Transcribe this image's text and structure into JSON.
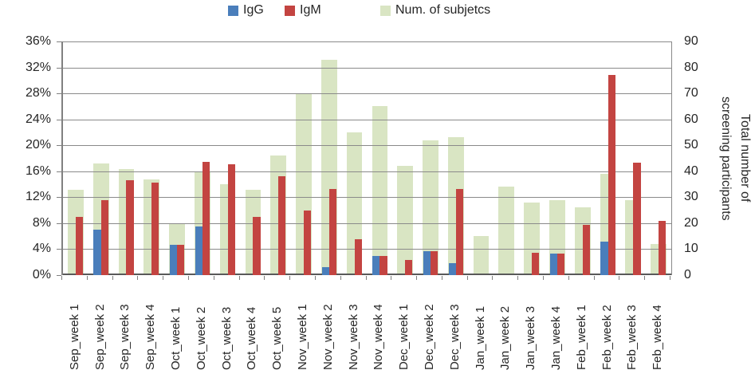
{
  "legend": {
    "items": [
      {
        "label": "IgG",
        "color": "#4A7EBB"
      },
      {
        "label": "IgM",
        "color": "#C34441"
      },
      {
        "label": "Num. of subjetcs",
        "color": "#D9E5C3"
      }
    ]
  },
  "chart_data": {
    "type": "bar",
    "title": "",
    "categories": [
      "Sep_week 1",
      "Sep_week 2",
      "Sep_week 3",
      "Sep_week 4",
      "Oct_week 1",
      "Oct_week 2",
      "Oct_week 3",
      "Oct_week 4",
      "Oct_week 5",
      "Nov_week 1",
      "Nov_week 2",
      "Nov_week 3",
      "Nov_week 4",
      "Dec_week 1",
      "Dec_week 2",
      "Dec_week 3",
      "Jan_week 1",
      "Jan_week 2",
      "Jan_week 3",
      "Jan_week 4",
      "Feb_week 1",
      "Feb_week 2",
      "Feb_week 3",
      "Feb_week 4"
    ],
    "series": [
      {
        "name": "IgG",
        "axis": "left",
        "color": "#4A7EBB",
        "values": [
          0,
          7.0,
          0,
          0,
          4.7,
          7.5,
          0,
          0,
          0,
          0,
          1.2,
          0,
          3.0,
          0,
          3.7,
          1.8,
          0,
          0,
          0,
          3.3,
          0,
          5.1,
          0,
          0
        ]
      },
      {
        "name": "IgM",
        "axis": "left",
        "color": "#C34441",
        "values": [
          9.0,
          11.5,
          14.6,
          14.2,
          4.7,
          17.5,
          17.1,
          9.0,
          15.2,
          10.0,
          13.3,
          5.5,
          3.0,
          2.3,
          3.7,
          13.3,
          0,
          0,
          3.5,
          3.3,
          7.8,
          30.8,
          17.3,
          8.3
        ]
      },
      {
        "name": "Num. of subjetcs",
        "axis": "right",
        "color": "#D9E5C3",
        "values": [
          33,
          43,
          41,
          37,
          20,
          40,
          35,
          33,
          46,
          70,
          83,
          55,
          65,
          42,
          52,
          53,
          15,
          34,
          28,
          29,
          26,
          39,
          29,
          12
        ]
      }
    ],
    "left_axis": {
      "min": 0,
      "max": 36,
      "step": 4,
      "unit": "%",
      "tick_labels": [
        "36%",
        "32%",
        "28%",
        "24%",
        "20%",
        "16%",
        "12%",
        "8%",
        "4%",
        "0%"
      ]
    },
    "right_axis": {
      "min": 0,
      "max": 90,
      "step": 10,
      "tick_labels": [
        "90",
        "80",
        "70",
        "60",
        "50",
        "40",
        "30",
        "20",
        "10",
        "0"
      ],
      "title": "Total number of screening participants",
      "title_lines": [
        "Total number of",
        "screening participants"
      ]
    },
    "grid": true,
    "legend_position": "top"
  }
}
